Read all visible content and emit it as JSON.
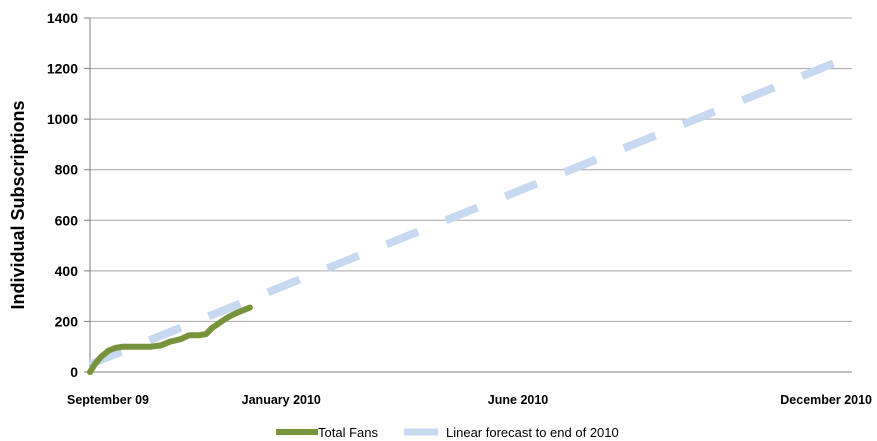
{
  "chart_data": {
    "type": "line",
    "title": "",
    "xlabel": "",
    "ylabel": "Individual Subscriptions",
    "ylim": [
      0,
      1400
    ],
    "y_ticks": [
      0,
      200,
      400,
      600,
      800,
      1000,
      1200,
      1400
    ],
    "x_range": [
      "2009-09-01",
      "2010-12-31"
    ],
    "x_ticks": [
      {
        "date": "2009-09-01",
        "label": "September 09"
      },
      {
        "date": "2010-01-01",
        "label": "January 2010"
      },
      {
        "date": "2010-06-01",
        "label": "June 2010"
      },
      {
        "date": "2010-12-31",
        "label": "December 2010"
      }
    ],
    "grid": true,
    "legend_position": "bottom",
    "series": [
      {
        "name": "Total Fans",
        "color": "#77933c",
        "style": "solid",
        "points": [
          [
            "2009-09-01",
            0
          ],
          [
            "2009-09-04",
            30
          ],
          [
            "2009-09-08",
            60
          ],
          [
            "2009-09-13",
            85
          ],
          [
            "2009-09-17",
            95
          ],
          [
            "2009-09-22",
            100
          ],
          [
            "2009-10-01",
            100
          ],
          [
            "2009-10-10",
            100
          ],
          [
            "2009-10-16",
            105
          ],
          [
            "2009-10-22",
            120
          ],
          [
            "2009-10-29",
            130
          ],
          [
            "2009-11-03",
            145
          ],
          [
            "2009-11-09",
            145
          ],
          [
            "2009-11-14",
            150
          ],
          [
            "2009-11-18",
            175
          ],
          [
            "2009-11-24",
            200
          ],
          [
            "2009-11-29",
            220
          ],
          [
            "2009-12-04",
            235
          ],
          [
            "2009-12-08",
            245
          ],
          [
            "2009-12-12",
            255
          ]
        ]
      },
      {
        "name": "Linear forecast to end of 2010",
        "color": "#c6d9f1",
        "style": "dashed",
        "points": [
          [
            "2009-09-01",
            30
          ],
          [
            "2010-12-31",
            1250
          ]
        ]
      }
    ]
  }
}
